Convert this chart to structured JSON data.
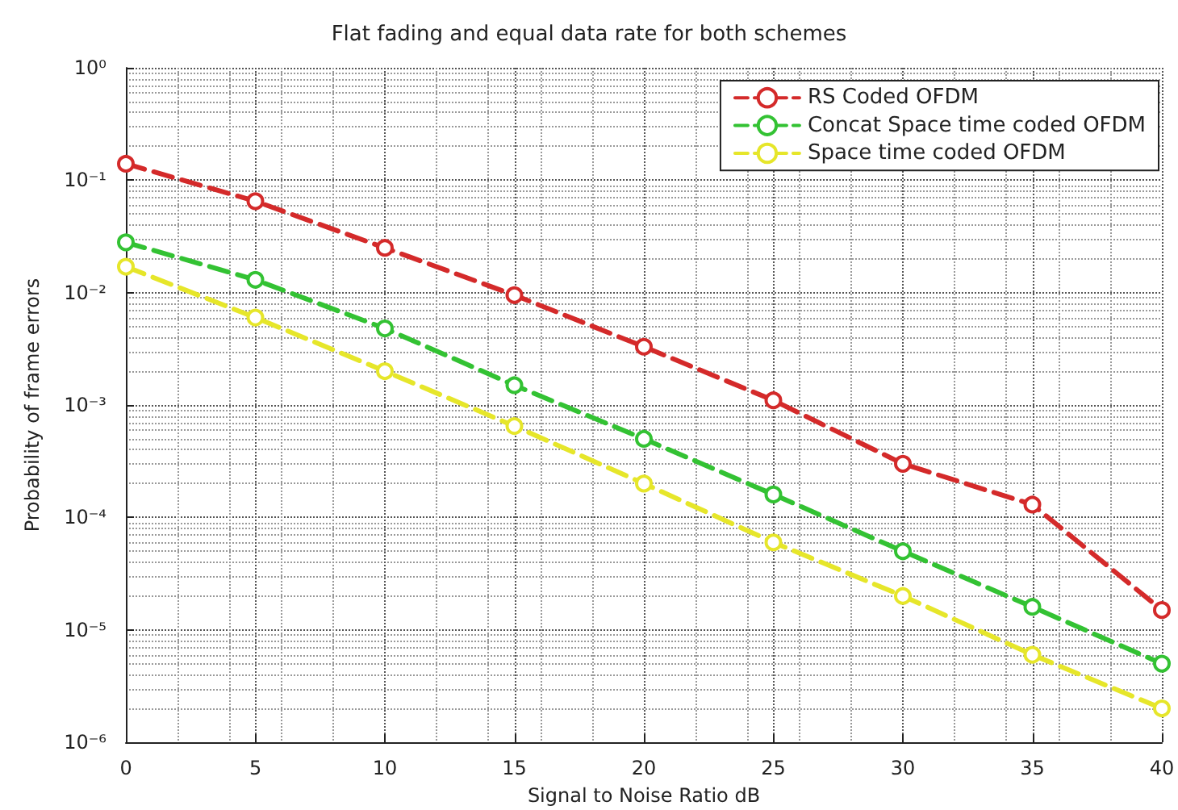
{
  "chart_data": {
    "type": "line",
    "title": "Flat fading and equal data rate for both schemes",
    "xlabel": "Signal to Noise Ratio dB",
    "ylabel": "Probability of frame errors",
    "x": [
      0,
      5,
      10,
      15,
      20,
      25,
      30,
      35,
      40
    ],
    "series": [
      {
        "name": "RS Coded OFDM",
        "color": "#d42a2a",
        "values": [
          0.14,
          0.065,
          0.025,
          0.0095,
          0.0033,
          0.0011,
          0.0003,
          0.00013,
          1.5e-05
        ]
      },
      {
        "name": "Concat Space time coded OFDM",
        "color": "#33c233",
        "values": [
          0.028,
          0.013,
          0.0048,
          0.0015,
          0.0005,
          0.00016,
          5e-05,
          1.6e-05,
          5e-06
        ]
      },
      {
        "name": "Space time coded OFDM",
        "color": "#e6e62a",
        "values": [
          0.017,
          0.006,
          0.002,
          0.00065,
          0.0002,
          6e-05,
          2e-05,
          6e-06,
          2e-06
        ]
      }
    ],
    "xlim": [
      0,
      40
    ],
    "xticks": [
      0,
      5,
      10,
      15,
      20,
      25,
      30,
      35,
      40
    ],
    "ylim": [
      1e-06,
      1
    ],
    "yticks": [
      {
        "value": 1e-06,
        "label": "10⁻⁶"
      },
      {
        "value": 1e-05,
        "label": "10⁻⁵"
      },
      {
        "value": 0.0001,
        "label": "10⁻⁴"
      },
      {
        "value": 0.001,
        "label": "10⁻³"
      },
      {
        "value": 0.01,
        "label": "10⁻²"
      },
      {
        "value": 0.1,
        "label": "10⁻¹"
      },
      {
        "value": 1,
        "label": "10⁰"
      }
    ],
    "log": "y",
    "grid": true,
    "legend": "top right",
    "marker": "circle",
    "line_style": "dashed"
  }
}
